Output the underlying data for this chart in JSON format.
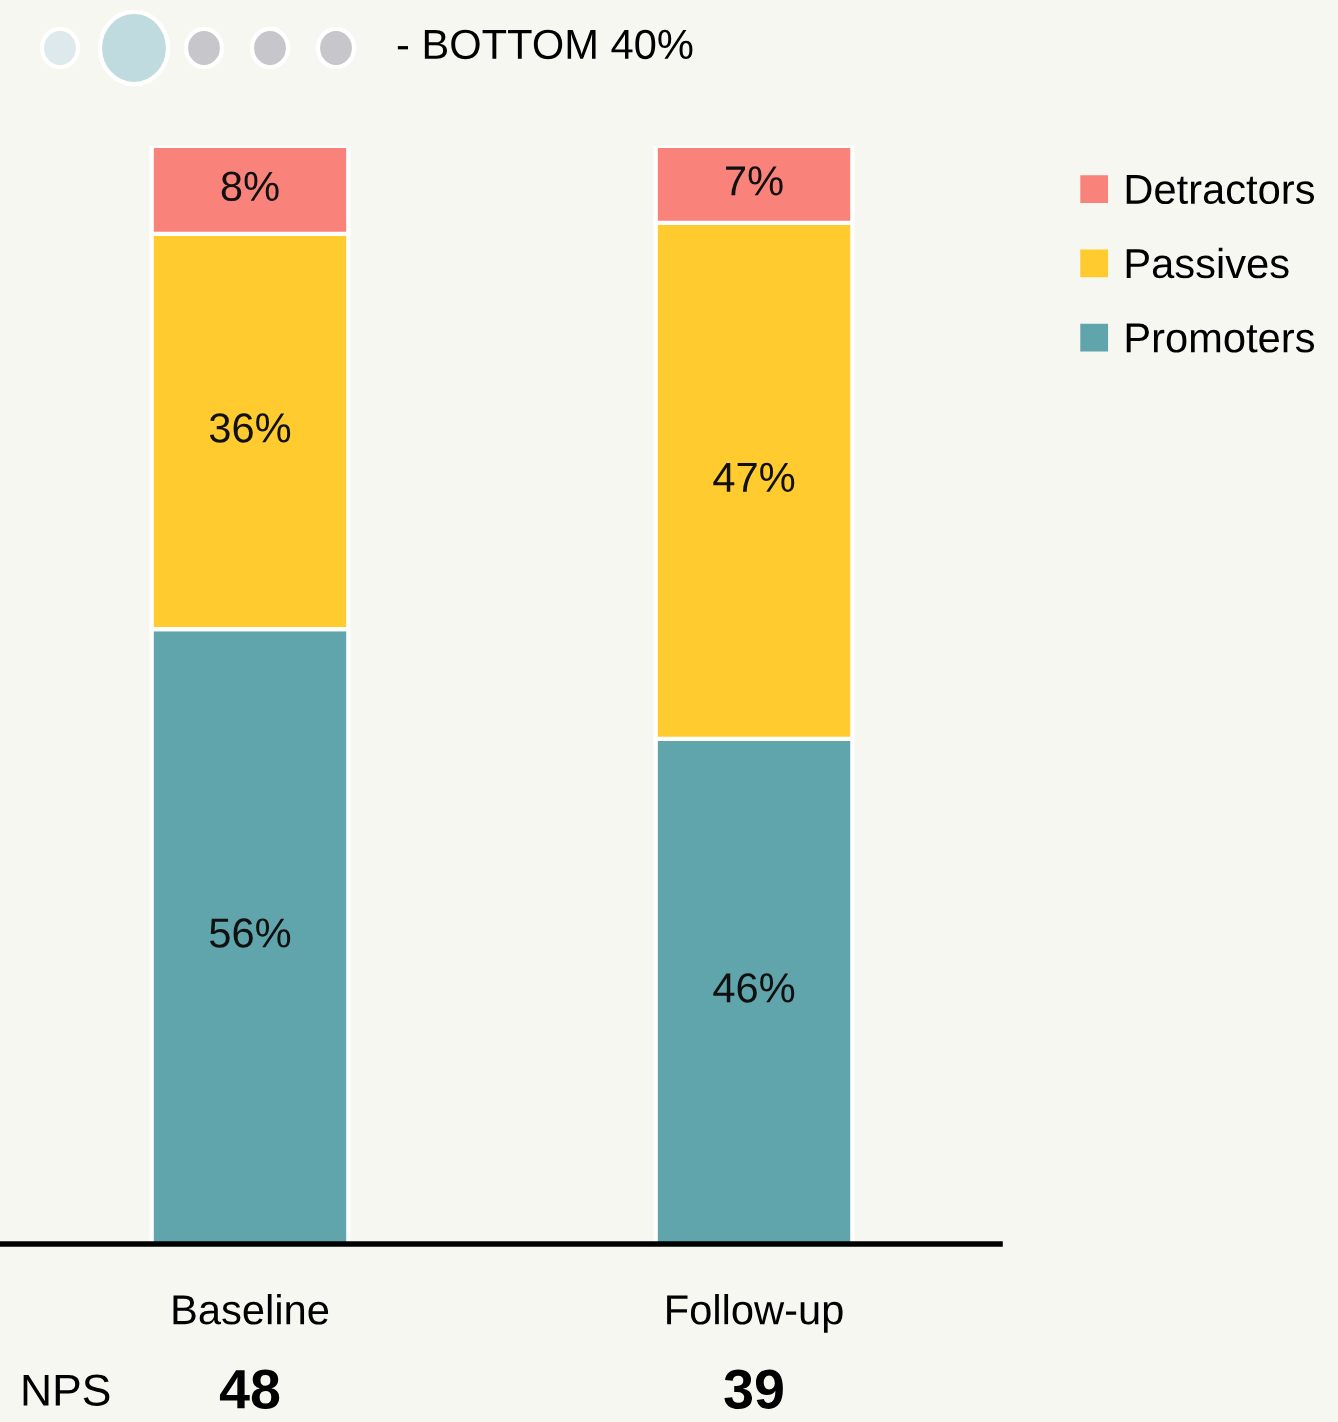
{
  "chart_data": {
    "type": "bar",
    "subtitle": "- BOTTOM 40%",
    "categories": [
      "Baseline",
      "Follow-up"
    ],
    "stacked": true,
    "series": [
      {
        "name": "Promoters",
        "color": "#5fa5ab",
        "values": [
          56,
          46
        ],
        "value_labels": [
          "56%",
          "46%"
        ]
      },
      {
        "name": "Passives",
        "color": "#ffcb2e",
        "values": [
          36,
          47
        ],
        "value_labels": [
          "36%",
          "47%"
        ]
      },
      {
        "name": "Detractors",
        "color": "#f9837a",
        "values": [
          8,
          7
        ],
        "value_labels": [
          "8%",
          "7%"
        ]
      }
    ],
    "tick_labels": "x",
    "legend": "top right",
    "grid": false,
    "annotations": [
      "NPS",
      "48",
      "39"
    ]
  }
}
